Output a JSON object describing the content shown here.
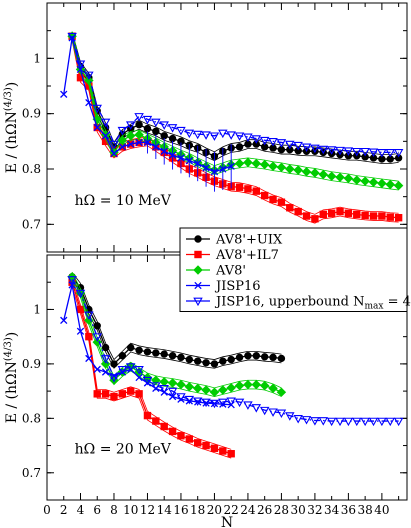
{
  "chart_data": [
    {
      "type": "line",
      "panel": "top",
      "annotation": "hΩ = 10 MeV",
      "ylabel": "E / (hΩN^(4/3))",
      "xlabel": "",
      "xlim": [
        0,
        43
      ],
      "ylim": [
        0.65,
        1.1
      ],
      "yticks": [
        0.7,
        0.8,
        0.9,
        1.0
      ],
      "yticklabels": [
        "0.7",
        "0.8",
        "0.9",
        "1"
      ],
      "grid": false,
      "series": [
        {
          "name": "AV8'+UIX",
          "color": "#000000",
          "marker": "circle",
          "band": true,
          "x": [
            3,
            4,
            5,
            6,
            7,
            8,
            9,
            10,
            11,
            12,
            13,
            14,
            15,
            16,
            17,
            18,
            19,
            20,
            21,
            22,
            23,
            24,
            25,
            26,
            27,
            28,
            29,
            30,
            31,
            32,
            33,
            34,
            35,
            36,
            37,
            38,
            39,
            40,
            41,
            42
          ],
          "y": [
            1.04,
            0.985,
            0.965,
            0.905,
            0.875,
            0.84,
            0.863,
            0.873,
            0.88,
            0.873,
            0.868,
            0.86,
            0.855,
            0.85,
            0.843,
            0.838,
            0.83,
            0.823,
            0.832,
            0.838,
            0.84,
            0.845,
            0.845,
            0.84,
            0.838,
            0.835,
            0.835,
            0.833,
            0.832,
            0.832,
            0.83,
            0.828,
            0.826,
            0.824,
            0.824,
            0.822,
            0.82,
            0.818,
            0.818,
            0.82
          ]
        },
        {
          "name": "AV8'+IL7",
          "color": "#ff0000",
          "marker": "square",
          "band": true,
          "x": [
            3,
            4,
            5,
            6,
            7,
            8,
            9,
            10,
            11,
            12,
            13,
            14,
            15,
            16,
            17,
            18,
            19,
            20,
            21,
            22,
            23,
            24,
            25,
            26,
            27,
            28,
            29,
            30,
            31,
            32,
            33,
            34,
            35,
            36,
            37,
            38,
            39,
            40,
            41,
            42
          ],
          "y": [
            1.04,
            0.965,
            0.95,
            0.875,
            0.85,
            0.828,
            0.84,
            0.845,
            0.848,
            0.85,
            0.84,
            0.83,
            0.82,
            0.81,
            0.8,
            0.793,
            0.785,
            0.778,
            0.773,
            0.768,
            0.767,
            0.764,
            0.76,
            0.752,
            0.745,
            0.74,
            0.73,
            0.723,
            0.715,
            0.71,
            0.718,
            0.72,
            0.723,
            0.72,
            0.718,
            0.716,
            0.715,
            0.715,
            0.713,
            0.712
          ]
        },
        {
          "name": "AV8'",
          "color": "#00cc00",
          "marker": "diamond",
          "band": true,
          "x": [
            3,
            4,
            5,
            6,
            7,
            8,
            9,
            10,
            11,
            12,
            13,
            14,
            15,
            16,
            17,
            18,
            19,
            20,
            21,
            22,
            23,
            24,
            25,
            26,
            27,
            28,
            29,
            30,
            31,
            32,
            33,
            34,
            35,
            36,
            37,
            38,
            39,
            40,
            41,
            42
          ],
          "y": [
            1.04,
            0.98,
            0.96,
            0.89,
            0.862,
            0.83,
            0.852,
            0.86,
            0.862,
            0.855,
            0.848,
            0.84,
            0.833,
            0.826,
            0.82,
            0.812,
            0.805,
            0.798,
            0.803,
            0.808,
            0.81,
            0.812,
            0.81,
            0.808,
            0.805,
            0.803,
            0.8,
            0.798,
            0.795,
            0.793,
            0.79,
            0.787,
            0.785,
            0.783,
            0.78,
            0.778,
            0.776,
            0.774,
            0.772,
            0.77
          ]
        },
        {
          "name": "JISP16",
          "color": "#0000ff",
          "marker": "x",
          "band": false,
          "errorbars": true,
          "x": [
            2,
            3,
            4,
            5,
            6,
            7,
            8,
            9,
            10,
            11,
            12,
            13,
            14,
            15,
            16,
            17,
            18,
            19,
            20,
            21,
            22
          ],
          "y": [
            0.935,
            1.037,
            0.98,
            0.92,
            0.875,
            0.86,
            0.828,
            0.84,
            0.845,
            0.848,
            0.848,
            0.84,
            0.832,
            0.825,
            0.82,
            0.815,
            0.81,
            0.802,
            0.795,
            0.8,
            0.805
          ]
        },
        {
          "name": "JISP16, upperbound N_max = 4",
          "color": "#0000ff",
          "marker": "triangle-down",
          "band": false,
          "linestyle": "dashdot",
          "x": [
            3,
            4,
            5,
            6,
            7,
            8,
            9,
            10,
            11,
            12,
            13,
            14,
            15,
            16,
            17,
            18,
            19,
            20,
            21,
            22,
            23,
            24,
            25,
            26,
            27,
            28,
            29,
            30,
            31,
            32,
            33,
            34,
            35,
            36,
            37,
            38,
            39,
            40,
            41,
            42
          ],
          "y": [
            1.04,
            0.99,
            0.97,
            0.91,
            0.885,
            0.845,
            0.87,
            0.88,
            0.895,
            0.89,
            0.885,
            0.88,
            0.875,
            0.87,
            0.865,
            0.863,
            0.862,
            0.86,
            0.865,
            0.862,
            0.86,
            0.858,
            0.855,
            0.852,
            0.85,
            0.848,
            0.845,
            0.843,
            0.84,
            0.838,
            0.836,
            0.835,
            0.834,
            0.833,
            0.832,
            0.832,
            0.831,
            0.83,
            0.83,
            0.83
          ]
        }
      ]
    },
    {
      "type": "line",
      "panel": "bottom",
      "annotation": "hΩ = 20 MeV",
      "ylabel": "E / (hΩN^(4/3))",
      "xlabel": "N",
      "xlim": [
        0,
        43
      ],
      "ylim": [
        0.65,
        1.1
      ],
      "xticks": [
        0,
        2,
        4,
        6,
        8,
        10,
        12,
        14,
        16,
        18,
        20,
        22,
        24,
        26,
        28,
        30,
        32,
        34,
        36,
        38,
        40,
        42
      ],
      "xticklabels": [
        "0",
        "2",
        "4",
        "6",
        "8",
        "10",
        "12",
        "14",
        "16",
        "18",
        "20",
        "22",
        "24",
        "26",
        "28",
        "30",
        "32",
        "34",
        "36",
        "38",
        "40",
        ""
      ],
      "yticks": [
        0.7,
        0.8,
        0.9,
        1.0
      ],
      "yticklabels": [
        "0.7",
        "0.8",
        "0.9",
        "1"
      ],
      "grid": false,
      "series": [
        {
          "name": "AV8'+UIX",
          "color": "#000000",
          "marker": "circle",
          "band": true,
          "x": [
            3,
            4,
            5,
            6,
            7,
            8,
            9,
            10,
            11,
            12,
            13,
            14,
            15,
            16,
            17,
            18,
            19,
            20,
            21,
            22,
            23,
            24,
            25,
            26,
            27,
            28
          ],
          "y": [
            1.06,
            1.04,
            1.0,
            0.97,
            0.93,
            0.9,
            0.915,
            0.93,
            0.925,
            0.922,
            0.92,
            0.918,
            0.915,
            0.912,
            0.908,
            0.905,
            0.902,
            0.9,
            0.905,
            0.908,
            0.912,
            0.915,
            0.915,
            0.913,
            0.912,
            0.91
          ]
        },
        {
          "name": "AV8'+IL7",
          "color": "#ff0000",
          "marker": "square",
          "band": true,
          "x": [
            3,
            4,
            5,
            6,
            7,
            8,
            9,
            10,
            11,
            12,
            13,
            14,
            15,
            16,
            17,
            18,
            19,
            20,
            21,
            22
          ],
          "y": [
            1.05,
            1.0,
            0.95,
            0.845,
            0.845,
            0.84,
            0.845,
            0.85,
            0.845,
            0.805,
            0.795,
            0.785,
            0.776,
            0.768,
            0.762,
            0.755,
            0.75,
            0.745,
            0.74,
            0.735
          ]
        },
        {
          "name": "AV8'",
          "color": "#00cc00",
          "marker": "diamond",
          "band": true,
          "x": [
            3,
            4,
            5,
            6,
            7,
            8,
            9,
            10,
            11,
            12,
            13,
            14,
            15,
            16,
            17,
            18,
            19,
            20,
            21,
            22,
            23,
            24,
            25,
            26,
            27,
            28
          ],
          "y": [
            1.06,
            1.03,
            0.98,
            0.94,
            0.9,
            0.87,
            0.885,
            0.895,
            0.885,
            0.875,
            0.87,
            0.867,
            0.865,
            0.862,
            0.858,
            0.855,
            0.852,
            0.848,
            0.852,
            0.856,
            0.86,
            0.862,
            0.862,
            0.86,
            0.855,
            0.848
          ]
        },
        {
          "name": "JISP16",
          "color": "#0000ff",
          "marker": "x",
          "band": false,
          "x": [
            2,
            3,
            4,
            5,
            6,
            7,
            8,
            9,
            10,
            11,
            12,
            13,
            14,
            15,
            16,
            17,
            18,
            19,
            20,
            21,
            22
          ],
          "y": [
            0.98,
            1.045,
            0.96,
            0.91,
            0.89,
            0.885,
            0.878,
            0.885,
            0.89,
            0.875,
            0.865,
            0.855,
            0.848,
            0.84,
            0.835,
            0.832,
            0.83,
            0.828,
            0.827,
            0.826,
            0.825
          ]
        },
        {
          "name": "JISP16, upperbound N_max = 4",
          "color": "#0000ff",
          "marker": "triangle-down",
          "band": false,
          "linestyle": "dashdot",
          "x": [
            3,
            4,
            5,
            6,
            7,
            8,
            9,
            10,
            11,
            12,
            13,
            14,
            15,
            16,
            17,
            18,
            19,
            20,
            21,
            22,
            23,
            24,
            25,
            26,
            27,
            28,
            29,
            30,
            31,
            32,
            33,
            34,
            35,
            36,
            37,
            38,
            39,
            40,
            41,
            42
          ],
          "y": [
            1.055,
            1.03,
            0.99,
            0.95,
            0.91,
            0.875,
            0.89,
            0.895,
            0.89,
            0.87,
            0.86,
            0.855,
            0.85,
            0.84,
            0.835,
            0.832,
            0.83,
            0.828,
            0.83,
            0.832,
            0.83,
            0.825,
            0.82,
            0.815,
            0.812,
            0.81,
            0.805,
            0.8,
            0.798,
            0.796,
            0.796,
            0.795,
            0.795,
            0.795,
            0.795,
            0.795,
            0.795,
            0.795,
            0.795,
            0.795
          ]
        }
      ]
    }
  ],
  "legend": {
    "placement": "center-right between panels",
    "entries": [
      {
        "label": "AV8'+UIX",
        "color": "#000000",
        "marker": "circle"
      },
      {
        "label": "AV8'+IL7",
        "color": "#ff0000",
        "marker": "square"
      },
      {
        "label": "AV8'",
        "color": "#00cc00",
        "marker": "diamond"
      },
      {
        "label": "JISP16",
        "color": "#0000ff",
        "marker": "x"
      },
      {
        "label": "JISP16, upperbound N",
        "sub": "max",
        "suffix": " = 4",
        "color": "#0000ff",
        "marker": "triangle-down"
      }
    ]
  }
}
